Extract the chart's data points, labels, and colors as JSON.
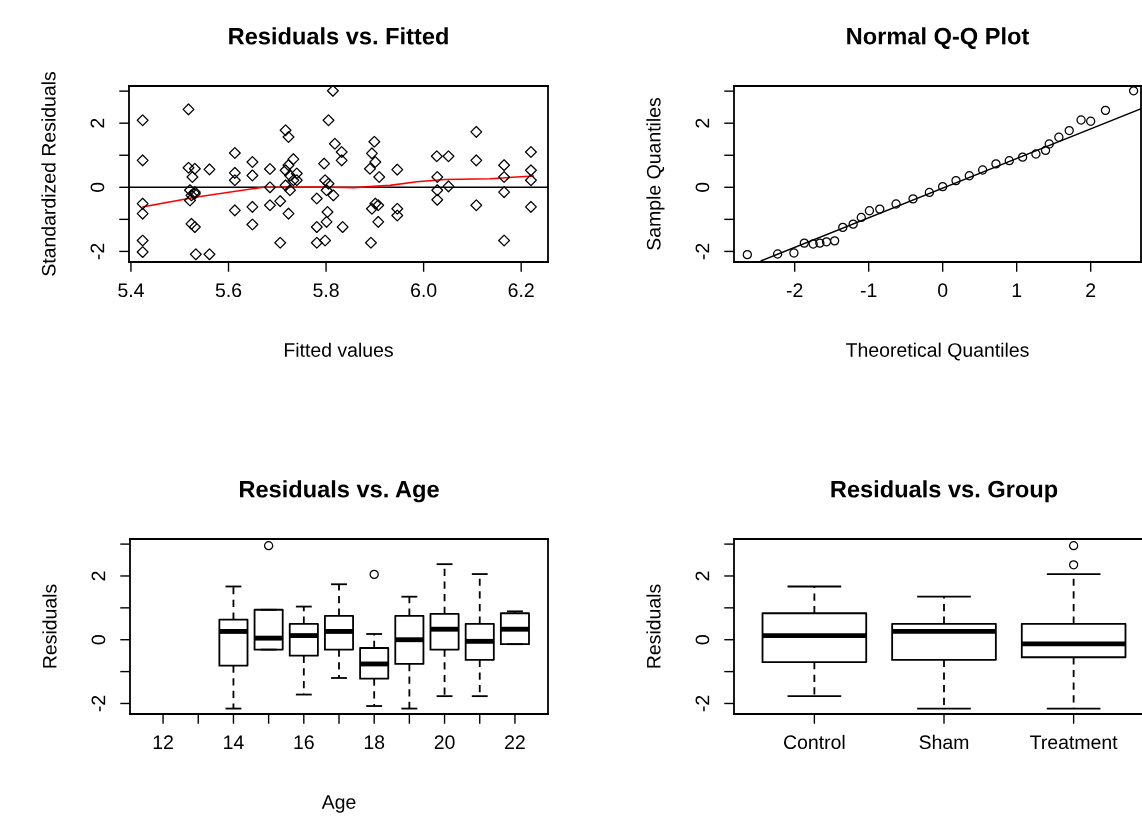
{
  "chart_data": [
    {
      "type": "scatter",
      "title": "Residuals vs. Fitted",
      "xlabel": "Fitted values",
      "ylabel": "Standardized Residuals",
      "xlim": [
        5.396,
        6.255
      ],
      "xticks": [
        5.4,
        5.6,
        5.8,
        {
          "value": 6.0,
          "label": "6.0"
        },
        6.2
      ],
      "ylim": [
        -2.33,
        3.16
      ],
      "yticks": [
        -2,
        {
          "value": -1,
          "label": null
        },
        0,
        {
          "value": 1,
          "label": null
        },
        2,
        {
          "value": 3,
          "label": null
        }
      ],
      "series": [
        {
          "type": "scatter",
          "marker": "diamond",
          "color": "#000000",
          "x": [
            5.424,
            5.424,
            5.424,
            5.424,
            5.424,
            5.424,
            5.518,
            5.518,
            5.531,
            5.526,
            5.521,
            5.531,
            5.524,
            5.531,
            5.521,
            5.524,
            5.531,
            5.533,
            5.561,
            5.561,
            5.613,
            5.613,
            5.613,
            5.613,
            5.649,
            5.649,
            5.649,
            5.649,
            5.685,
            5.685,
            5.685,
            5.706,
            5.706,
            5.717,
            5.723,
            5.733,
            5.723,
            5.717,
            5.726,
            5.733,
            5.717,
            5.726,
            5.723,
            5.74,
            5.74,
            5.814,
            5.805,
            5.818,
            5.796,
            5.798,
            5.805,
            5.801,
            5.815,
            5.781,
            5.803,
            5.781,
            5.801,
            5.798,
            5.781,
            5.834,
            5.832,
            5.832,
            5.899,
            5.894,
            5.901,
            5.89,
            5.909,
            5.901,
            5.894,
            5.907,
            5.907,
            5.892,
            5.946,
            5.946,
            5.946,
            6.027,
            6.051,
            6.028,
            6.051,
            6.028,
            6.028,
            6.108,
            6.108,
            6.108,
            6.165,
            6.165,
            6.165,
            6.165,
            6.22,
            6.22,
            6.22,
            6.22
          ],
          "values": [
            2.09,
            0.84,
            -0.51,
            -0.82,
            -1.66,
            -2.02,
            2.43,
            0.61,
            0.58,
            0.32,
            -0.09,
            -0.15,
            -0.25,
            -0.2,
            -0.41,
            -1.14,
            -1.24,
            -2.09,
            -2.09,
            0.56,
            1.07,
            0.45,
            0.22,
            -0.72,
            0.79,
            0.37,
            -0.61,
            -1.16,
            0.57,
            0,
            -0.56,
            -0.43,
            -1.73,
            1.78,
            1.57,
            0.88,
            0.69,
            0.53,
            0.37,
            0.22,
            0.06,
            -0.09,
            -0.82,
            0.43,
            0.22,
            3.01,
            2.09,
            1.36,
            0.74,
            0.22,
            0.11,
            -0.09,
            -0.25,
            -0.35,
            -0.77,
            -1.24,
            -1.08,
            -1.66,
            -1.73,
            -1.24,
            1.1,
            0.84,
            1.42,
            1.06,
            0.79,
            0.58,
            0.32,
            -0.51,
            -0.67,
            -0.56,
            -1.08,
            -1.73,
            0.55,
            -0.67,
            -0.88,
            0.97,
            0.97,
            0.32,
            0.03,
            -0.09,
            -0.39,
            1.73,
            0.84,
            -0.56,
            0.69,
            0.32,
            -0.15,
            -1.66,
            1.1,
            0.53,
            0.22,
            -0.61
          ]
        },
        {
          "type": "line",
          "color": "#ff0000",
          "x": [
            5.425,
            5.535,
            5.671,
            5.788,
            5.856,
            5.931,
            5.986,
            6.044,
            6.136,
            6.225
          ],
          "values": [
            -0.61,
            -0.3,
            0,
            0.01,
            -0.01,
            0.06,
            0.17,
            0.24,
            0.27,
            0.35
          ]
        }
      ],
      "ref_lines": [
        {
          "axis": "y",
          "value": 0,
          "color": "#000000"
        }
      ]
    },
    {
      "type": "scatter",
      "title": "Normal Q-Q Plot",
      "xlabel": "Theoretical Quantiles",
      "ylabel": "Sample Quantiles",
      "xlim": [
        -2.82,
        2.68
      ],
      "xticks": [
        -2,
        -1,
        0,
        1,
        2
      ],
      "ylim": [
        -2.33,
        3.16
      ],
      "yticks": [
        -2,
        {
          "value": -1,
          "label": null
        },
        0,
        {
          "value": 1,
          "label": null
        },
        2,
        {
          "value": 3,
          "label": null
        }
      ],
      "series": [
        {
          "type": "scatter",
          "marker": "circle",
          "color": "#000000",
          "x": [
            -2.64,
            -2.23,
            -2.01,
            -1.87,
            -1.75,
            -1.66,
            -1.57,
            -1.46,
            -1.35,
            -1.21,
            -1.1,
            -0.99,
            -0.85,
            -0.63,
            -0.4,
            -0.18,
            0,
            0.18,
            0.36,
            0.54,
            0.72,
            0.9,
            1.08,
            1.26,
            1.39,
            1.44,
            1.57,
            1.71,
            1.87,
            2.0,
            2.2,
            2.58
          ],
          "values": [
            -2.1,
            -2.08,
            -2.05,
            -1.74,
            -1.77,
            -1.74,
            -1.7,
            -1.67,
            -1.25,
            -1.15,
            -0.94,
            -0.73,
            -0.68,
            -0.52,
            -0.36,
            -0.16,
            0.02,
            0.21,
            0.36,
            0.54,
            0.73,
            0.83,
            0.94,
            1.04,
            1.15,
            1.35,
            1.56,
            1.77,
            2.1,
            2.06,
            2.4,
            3.01
          ]
        },
        {
          "type": "line",
          "color": "#000000",
          "x": [
            -2.45,
            2.68
          ],
          "values": [
            -2.29,
            2.45
          ]
        }
      ]
    },
    {
      "type": "box",
      "title": "Residuals vs. Age",
      "xlabel": "Age",
      "ylabel": "Residuals",
      "ylim": [
        -2.33,
        3.16
      ],
      "yticks": [
        -2,
        {
          "value": -1,
          "label": null
        },
        0,
        {
          "value": 1,
          "label": null
        },
        2,
        {
          "value": 3,
          "label": null
        }
      ],
      "categories": [
        "12",
        null,
        "14",
        null,
        "16",
        null,
        "18",
        null,
        "20",
        null,
        "22"
      ],
      "boxes": [
        null,
        null,
        {
          "low": -2.16,
          "q1": -0.81,
          "median": 0.26,
          "q3": 0.63,
          "high": 1.67
        },
        {
          "low": -0.31,
          "q1": -0.31,
          "median": 0.05,
          "q3": 0.94,
          "high": 0.94,
          "outliers": [
            2.95
          ]
        },
        {
          "low": -1.72,
          "q1": -0.5,
          "median": 0.13,
          "q3": 0.5,
          "high": 1.04
        },
        {
          "low": -1.2,
          "q1": -0.31,
          "median": 0.26,
          "q3": 0.75,
          "high": 1.74
        },
        {
          "low": -2.08,
          "q1": -1.22,
          "median": -0.76,
          "q3": -0.26,
          "high": 0.18,
          "outliers": [
            2.05
          ]
        },
        {
          "low": -2.16,
          "q1": -0.76,
          "median": 0.0,
          "q3": 0.75,
          "high": 1.35
        },
        {
          "low": -1.77,
          "q1": -0.31,
          "median": 0.33,
          "q3": 0.81,
          "high": 2.37
        },
        {
          "low": -1.77,
          "q1": -0.63,
          "median": -0.05,
          "q3": 0.5,
          "high": 2.06
        },
        {
          "low": -0.14,
          "q1": -0.14,
          "median": 0.33,
          "q3": 0.83,
          "high": 0.89
        }
      ]
    },
    {
      "type": "box",
      "title": "Residuals vs. Group",
      "ylabel": "Residuals",
      "ylim": [
        -2.33,
        3.16
      ],
      "yticks": [
        -2,
        {
          "value": -1,
          "label": null
        },
        0,
        {
          "value": 1,
          "label": null
        },
        2,
        {
          "value": 3,
          "label": null
        }
      ],
      "categories": [
        "Control",
        "Sham",
        "Treatment"
      ],
      "boxes": [
        {
          "low": -1.77,
          "q1": -0.7,
          "median": 0.13,
          "q3": 0.83,
          "high": 1.67
        },
        {
          "low": -2.16,
          "q1": -0.63,
          "median": 0.26,
          "q3": 0.5,
          "high": 1.35
        },
        {
          "low": -2.16,
          "q1": -0.55,
          "median": -0.13,
          "q3": 0.5,
          "high": 2.06,
          "outliers": [
            2.35,
            2.95
          ]
        }
      ]
    }
  ]
}
